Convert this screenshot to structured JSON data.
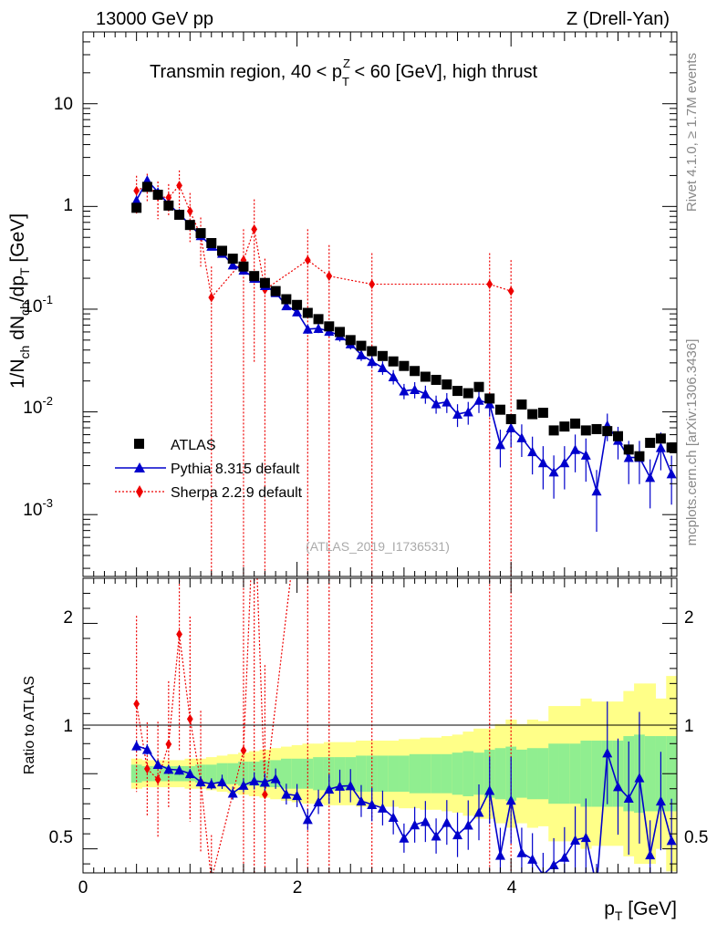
{
  "header": {
    "left_label": "13000 GeV pp",
    "right_label": "Z (Drell-Yan)",
    "title": "Transmin region, 40 < pTZ < 60 [GeV], high thrust",
    "title_part_a": "Transmin region, 40 < p",
    "title_sup": "Z",
    "title_sub": "T",
    "title_part_b": " < 60 [GeV], high thrust",
    "watermark": "(ATLAS_2019_I1736531)",
    "side_version": "Rivet 4.1.0, ≥ 1.7M events",
    "side_source": "mcplots.cern.ch [arXiv:1306.3436]"
  },
  "axes": {
    "main_ylabel": "1/N_ch dN_ch/dp_T [GeV]",
    "ratio_ylabel": "Ratio to ATLAS",
    "xlabel": "p_T [GeV]",
    "xlabel_pre": "p",
    "xlabel_sub": "T",
    "xlabel_post": " [GeV]",
    "main_ytick_ones": [
      "10",
      "1"
    ],
    "main_ytick_exp": [
      "-1",
      "-2",
      "-3"
    ],
    "ratio_yticks": [
      "2",
      "1",
      "0.5"
    ],
    "xticks": [
      "0",
      "2",
      "4"
    ]
  },
  "legend": {
    "atlas": "ATLAS",
    "pythia": "Pythia 8.315 default",
    "sherpa": "Sherpa 2.2.9 default"
  },
  "colors": {
    "atlas": "#000000",
    "pythia": "#0000cc",
    "sherpa": "#ee0000",
    "band_green": "#90ee90",
    "band_yellow": "#ffff88",
    "side_text": "#888888"
  },
  "chart_data": {
    "type": "line",
    "title": "Transmin region, 40 < pTZ < 60 [GeV], high thrust",
    "xlabel": "p_T [GeV]",
    "ylabel": "1/N_ch dN_ch/dp_T [GeV]",
    "xlim": [
      0,
      5.55
    ],
    "ylim": [
      0.00025,
      50
    ],
    "yscale": "log",
    "ratio_ylim": [
      0.34,
      2.3
    ],
    "ratio_ylabel": "Ratio to ATLAS",
    "series": [
      {
        "name": "ATLAS",
        "style": "square-marker",
        "x": [
          0.5,
          0.6,
          0.7,
          0.8,
          0.9,
          1.0,
          1.1,
          1.2,
          1.3,
          1.4,
          1.5,
          1.6,
          1.7,
          1.8,
          1.9,
          2.0,
          2.1,
          2.2,
          2.3,
          2.4,
          2.5,
          2.6,
          2.7,
          2.8,
          2.9,
          3.0,
          3.1,
          3.2,
          3.3,
          3.4,
          3.5,
          3.6,
          3.7,
          3.8,
          3.9,
          4.0,
          4.1,
          4.2,
          4.3,
          4.4,
          4.5,
          4.6,
          4.7,
          4.8,
          4.9,
          5.0,
          5.1,
          5.2,
          5.3,
          5.4,
          5.5
        ],
        "y": [
          0.97,
          1.55,
          1.3,
          1.02,
          0.83,
          0.66,
          0.55,
          0.44,
          0.37,
          0.31,
          0.26,
          0.21,
          0.18,
          0.15,
          0.125,
          0.11,
          0.092,
          0.08,
          0.068,
          0.06,
          0.05,
          0.044,
          0.039,
          0.035,
          0.031,
          0.028,
          0.025,
          0.022,
          0.0205,
          0.0185,
          0.016,
          0.0152,
          0.0175,
          0.0135,
          0.0105,
          0.0085,
          0.0118,
          0.0095,
          0.0098,
          0.0066,
          0.0072,
          0.0077,
          0.0066,
          0.0068,
          0.0065,
          0.0058,
          0.0043,
          0.0037,
          0.005,
          0.0055,
          0.0045
        ]
      },
      {
        "name": "Pythia 8.315 default",
        "style": "triangle-marker solid",
        "x": [
          0.5,
          0.6,
          0.7,
          0.8,
          0.9,
          1.0,
          1.1,
          1.2,
          1.3,
          1.4,
          1.5,
          1.6,
          1.7,
          1.8,
          1.9,
          2.0,
          2.1,
          2.2,
          2.3,
          2.4,
          2.5,
          2.6,
          2.7,
          2.8,
          2.9,
          3.0,
          3.1,
          3.2,
          3.3,
          3.4,
          3.5,
          3.6,
          3.7,
          3.8,
          3.9,
          4.0,
          4.1,
          4.2,
          4.3,
          4.4,
          4.5,
          4.6,
          4.7,
          4.8,
          4.9,
          5.0,
          5.1,
          5.2,
          5.3,
          5.4,
          5.5
        ],
        "y": [
          1.15,
          1.8,
          1.38,
          1.05,
          0.85,
          0.66,
          0.52,
          0.41,
          0.35,
          0.27,
          0.24,
          0.2,
          0.17,
          0.145,
          0.108,
          0.094,
          0.064,
          0.065,
          0.061,
          0.055,
          0.046,
          0.036,
          0.031,
          0.027,
          0.022,
          0.016,
          0.0165,
          0.015,
          0.012,
          0.0125,
          0.0095,
          0.01,
          0.013,
          0.012,
          0.0048,
          0.007,
          0.0056,
          0.0041,
          0.0032,
          0.0026,
          0.0032,
          0.0043,
          0.0038,
          0.0017,
          0.0074,
          0.0053,
          0.0036,
          0.0036,
          0.0023,
          0.0045,
          0.0025
        ],
        "yerr_rel": [
          0.03,
          0.03,
          0.03,
          0.03,
          0.03,
          0.03,
          0.04,
          0.04,
          0.05,
          0.05,
          0.05,
          0.06,
          0.06,
          0.07,
          0.08,
          0.09,
          0.1,
          0.1,
          0.11,
          0.12,
          0.12,
          0.13,
          0.14,
          0.15,
          0.16,
          0.17,
          0.18,
          0.2,
          0.2,
          0.22,
          0.25,
          0.25,
          0.25,
          0.25,
          0.4,
          0.35,
          0.35,
          0.4,
          0.45,
          0.45,
          0.45,
          0.4,
          0.45,
          0.6,
          0.3,
          0.35,
          0.45,
          0.45,
          0.5,
          0.4,
          0.5
        ]
      },
      {
        "name": "Sherpa 2.2.9 default",
        "style": "diamond-marker dotted",
        "x": [
          0.5,
          0.6,
          0.7,
          0.8,
          0.9,
          1.0,
          1.1,
          1.2,
          1.5,
          1.6,
          1.7,
          2.1,
          2.3,
          2.7,
          3.8,
          4.0
        ],
        "y": [
          1.42,
          1.6,
          1.25,
          1.22,
          1.6,
          0.9,
          0.52,
          0.13,
          0.3,
          0.6,
          0.155,
          0.3,
          0.21,
          0.175,
          0.175,
          0.15
        ],
        "yerr_rel": [
          0.4,
          0.3,
          0.4,
          0.35,
          0.4,
          0.5,
          0.5,
          1.0,
          1.0,
          0.95,
          1.0,
          1.0,
          1.0,
          1.0,
          1.0,
          1.0
        ]
      }
    ],
    "ratio_band_inner": [
      0.06,
      0.05,
      0.05,
      0.05,
      0.05,
      0.05,
      0.06,
      0.06,
      0.07,
      0.07,
      0.08,
      0.08,
      0.09,
      0.09,
      0.1,
      0.1,
      0.1,
      0.11,
      0.11,
      0.11,
      0.11,
      0.12,
      0.12,
      0.12,
      0.12,
      0.12,
      0.13,
      0.13,
      0.13,
      0.13,
      0.14,
      0.15,
      0.14,
      0.16,
      0.17,
      0.18,
      0.16,
      0.17,
      0.17,
      0.2,
      0.2,
      0.2,
      0.22,
      0.22,
      0.22,
      0.22,
      0.25,
      0.26,
      0.25,
      0.25,
      0.25
    ],
    "ratio_band_outer": [
      0.1,
      0.09,
      0.09,
      0.09,
      0.09,
      0.1,
      0.1,
      0.11,
      0.12,
      0.13,
      0.14,
      0.15,
      0.16,
      0.17,
      0.18,
      0.19,
      0.2,
      0.2,
      0.21,
      0.21,
      0.21,
      0.22,
      0.22,
      0.22,
      0.22,
      0.23,
      0.23,
      0.24,
      0.24,
      0.25,
      0.26,
      0.28,
      0.3,
      0.3,
      0.33,
      0.36,
      0.33,
      0.36,
      0.35,
      0.45,
      0.45,
      0.45,
      0.5,
      0.48,
      0.48,
      0.48,
      0.55,
      0.6,
      0.6,
      0.5,
      0.65
    ]
  }
}
